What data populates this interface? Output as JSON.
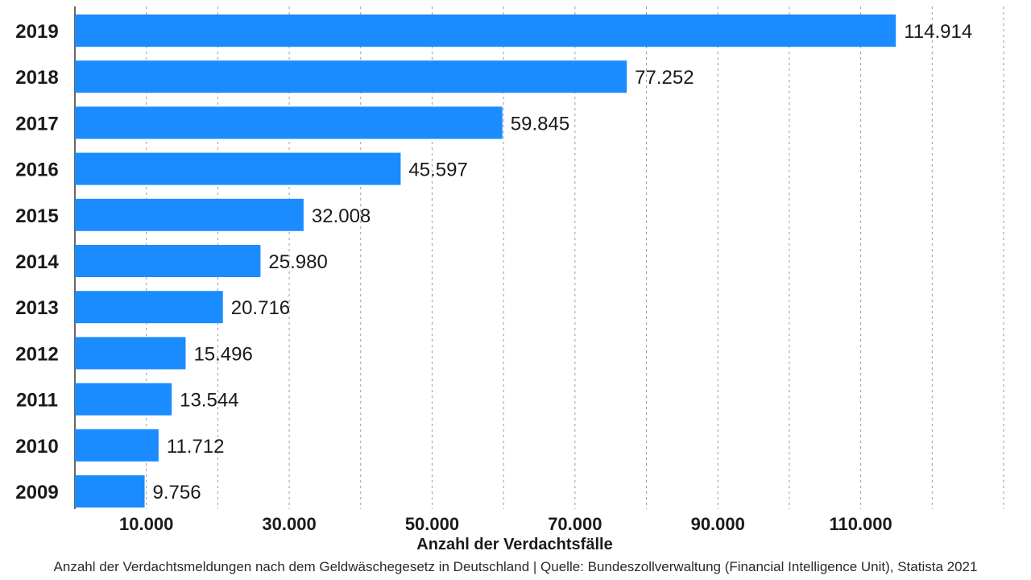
{
  "chart_data": {
    "type": "bar",
    "orientation": "horizontal",
    "categories": [
      "2019",
      "2018",
      "2017",
      "2016",
      "2015",
      "2014",
      "2013",
      "2012",
      "2011",
      "2010",
      "2009"
    ],
    "values": [
      114914,
      77252,
      59845,
      45597,
      32008,
      25980,
      20716,
      15496,
      13544,
      11712,
      9756
    ],
    "value_labels": [
      "114.914",
      "77.252",
      "59.845",
      "45.597",
      "32.008",
      "25.980",
      "20.716",
      "15.496",
      "13.544",
      "11.712",
      "9.756"
    ],
    "xlabel": "Anzahl der Verdachtsfälle",
    "ylabel": "",
    "xlim": [
      0,
      130000
    ],
    "x_tick_values": [
      10000,
      30000,
      50000,
      70000,
      90000,
      110000
    ],
    "x_tick_labels": [
      "10.000",
      "30.000",
      "50.000",
      "70.000",
      "90.000",
      "110.000"
    ],
    "grid": true,
    "bar_color": "#1a8cff",
    "caption": "Anzahl der Verdachtsmeldungen nach dem Geldwäschegesetz in Deutschland | Quelle: Bundeszollverwaltung (Financial Intelligence Unit), Statista 2021"
  }
}
